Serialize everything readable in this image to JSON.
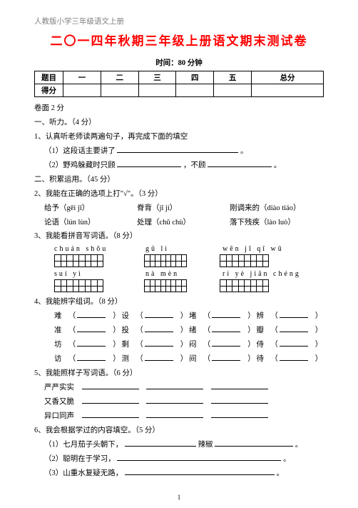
{
  "header": {
    "book": "人教版小学三年级语文上册"
  },
  "title": "二〇一四年秋期三年级上册语文期末测试卷",
  "time": "时间：80 分钟",
  "scoreTable": {
    "rowLabels": [
      "题目",
      "得分"
    ],
    "cols": [
      "一",
      "二",
      "三",
      "四",
      "五",
      "总分"
    ]
  },
  "face": "卷面 2 分",
  "s1": {
    "heading": "一、听力。（4 分）",
    "q1": "1、认真听老师读两遍句子，再完成下面的填空",
    "q1a": "（1）这段话主要讲了",
    "q1aEnd": "。",
    "q1b_a": "（2）野鸡躲藏时只顾",
    "q1b_b": "，不顾",
    "q1b_c": "。"
  },
  "s2": {
    "heading": "二、积累运用。（45 分）",
    "q2": "2、我能在正确的选项上打\"√\"。（3 分）",
    "q2rows": [
      {
        "a": "给予（gěi  jǐ）",
        "b": "脊背（jǐ   jí）",
        "c": "刚调来的（diào  tiáo）"
      },
      {
        "a": "论语（lún  lùn）",
        "b": "处理（chǔ  chù）",
        "c": "落下残疾（lào  luò）"
      }
    ],
    "q3": "3、我能看拼音写词语。（8 分）",
    "q3row1": [
      "chuán shǒu",
      "gǔ  lì",
      "wēn  jī  qǐ  wǔ"
    ],
    "q3row2": [
      "suí  yì",
      "nà  mèn",
      "rì  yè  jiān chéng"
    ],
    "q4": "4、我能辨字组词。（8 分）",
    "q4rows": [
      [
        "难",
        "设",
        "堵",
        "辨"
      ],
      [
        "准",
        "投",
        "绪",
        "瓣"
      ],
      [
        "坊",
        "剩",
        "闷",
        "侍"
      ],
      [
        "访",
        "测",
        "间",
        "待"
      ]
    ],
    "q5": "5、我能照样子写词语。（6 分）",
    "q5rows": [
      "严严实实",
      "又香又脆",
      "异口同声"
    ],
    "q6": "6、我会根据学过的内容填空。（5 分）",
    "q6a_a": "（1）七月茄子头朝下，",
    "q6a_b": "辣椒",
    "q6a_c": "。",
    "q6b_a": "（2）聪明在于学习，",
    "q6b_b": "。",
    "q6c_a": "（3）山重水复疑无路，",
    "q6c_b": "。"
  },
  "footer": "1"
}
